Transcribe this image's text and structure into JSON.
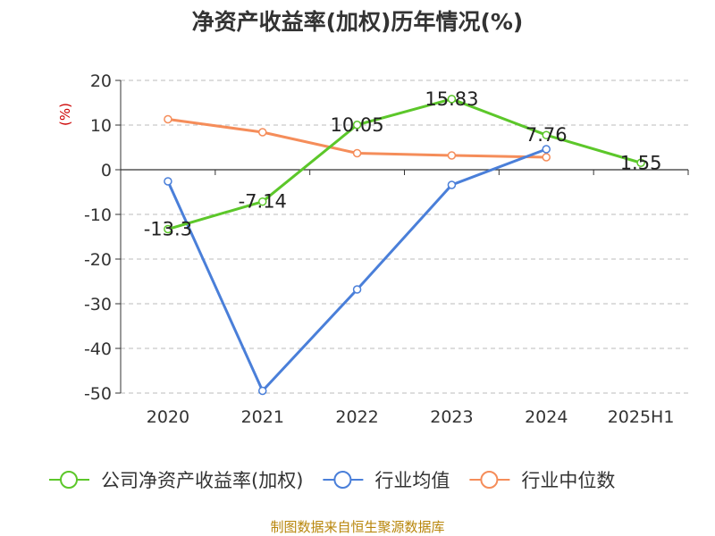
{
  "chart_data": {
    "type": "line",
    "title": "净资产收益率(加权)历年情况(%)",
    "unit_label": "(%)",
    "categories": [
      "2020",
      "2021",
      "2022",
      "2023",
      "2024",
      "2025H1"
    ],
    "ylim": [
      -50,
      20
    ],
    "yticks": [
      "20",
      "10",
      "0",
      "-10",
      "-20",
      "-30",
      "-40",
      "-50"
    ],
    "ytick_values": [
      20,
      10,
      0,
      -10,
      -20,
      -30,
      -40,
      -50
    ],
    "grid": true,
    "legend_position": "bottom",
    "series": [
      {
        "name": "公司净资产收益率(加权)",
        "color": "#5cc72a",
        "values": [
          -13.3,
          -7.14,
          10.05,
          15.83,
          7.76,
          1.55
        ],
        "labels": [
          "-13.3",
          "-7.14",
          "10.05",
          "15.83",
          "7.76",
          "1.55"
        ]
      },
      {
        "name": "行业均值",
        "color": "#4a7fd9",
        "values": [
          -2.6,
          -49.5,
          -26.8,
          -3.4,
          4.6,
          null
        ]
      },
      {
        "name": "行业中位数",
        "color": "#f58d5a",
        "values": [
          11.3,
          8.4,
          3.7,
          3.2,
          2.8,
          null
        ]
      }
    ]
  },
  "source": "制图数据来自恒生聚源数据库"
}
